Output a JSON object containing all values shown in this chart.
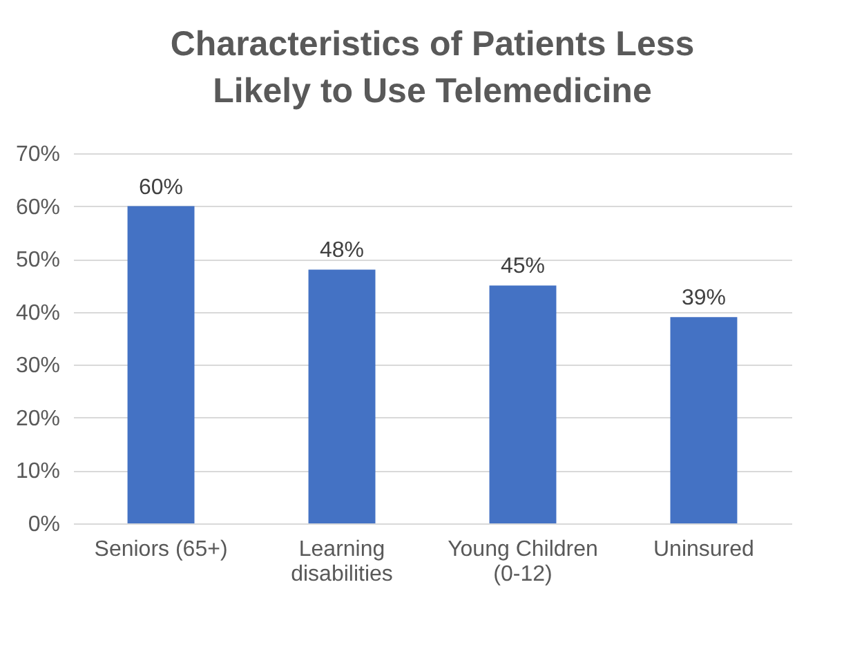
{
  "chart_data": {
    "type": "bar",
    "title": "Characteristics of Patients Less Likely to Use Telemedicine",
    "categories": [
      "Seniors (65+)",
      "Learning disabilities",
      "Young Children (0-12)",
      "Uninsured"
    ],
    "values": [
      60,
      48,
      45,
      39
    ],
    "color": "#4472c4",
    "value_labels": [
      "60%",
      "48%",
      "45%",
      "39%"
    ],
    "ylim": [
      0,
      70
    ],
    "yticks": [
      {
        "value": 0,
        "label": "0%"
      },
      {
        "value": 10,
        "label": "10%"
      },
      {
        "value": 20,
        "label": "20%"
      },
      {
        "value": 30,
        "label": "30%"
      },
      {
        "value": 40,
        "label": "40%"
      },
      {
        "value": 50,
        "label": "50%"
      },
      {
        "value": 60,
        "label": "60%"
      },
      {
        "value": 70,
        "label": "70%"
      }
    ],
    "grid": "y"
  }
}
